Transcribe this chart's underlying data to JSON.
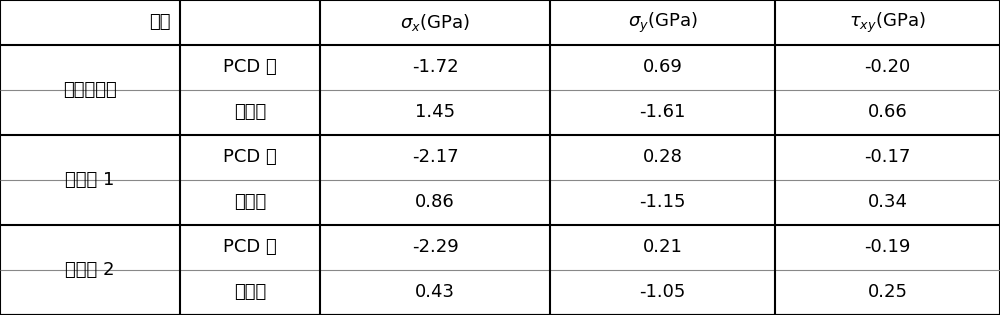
{
  "background_color": "#ffffff",
  "col1_label": "应力",
  "rows": [
    {
      "group": "普通复合片",
      "sub1_label": "PCD 侧",
      "sub1_vals": [
        "-1.72",
        "0.69",
        "-0.20"
      ],
      "sub2_label": "基体内",
      "sub2_vals": [
        "1.45",
        "-1.61",
        "0.66"
      ]
    },
    {
      "group": "实施例 1",
      "sub1_label": "PCD 侧",
      "sub1_vals": [
        "-2.17",
        "0.28",
        "-0.17"
      ],
      "sub2_label": "基体内",
      "sub2_vals": [
        "0.86",
        "-1.15",
        "0.34"
      ]
    },
    {
      "group": "实施例 2",
      "sub1_label": "PCD 侧",
      "sub1_vals": [
        "-2.29",
        "0.21",
        "-0.19"
      ],
      "sub2_label": "基体内",
      "sub2_vals": [
        "0.43",
        "-1.05",
        "0.25"
      ]
    }
  ],
  "line_color": "#000000",
  "text_color": "#000000",
  "font_size": 13
}
